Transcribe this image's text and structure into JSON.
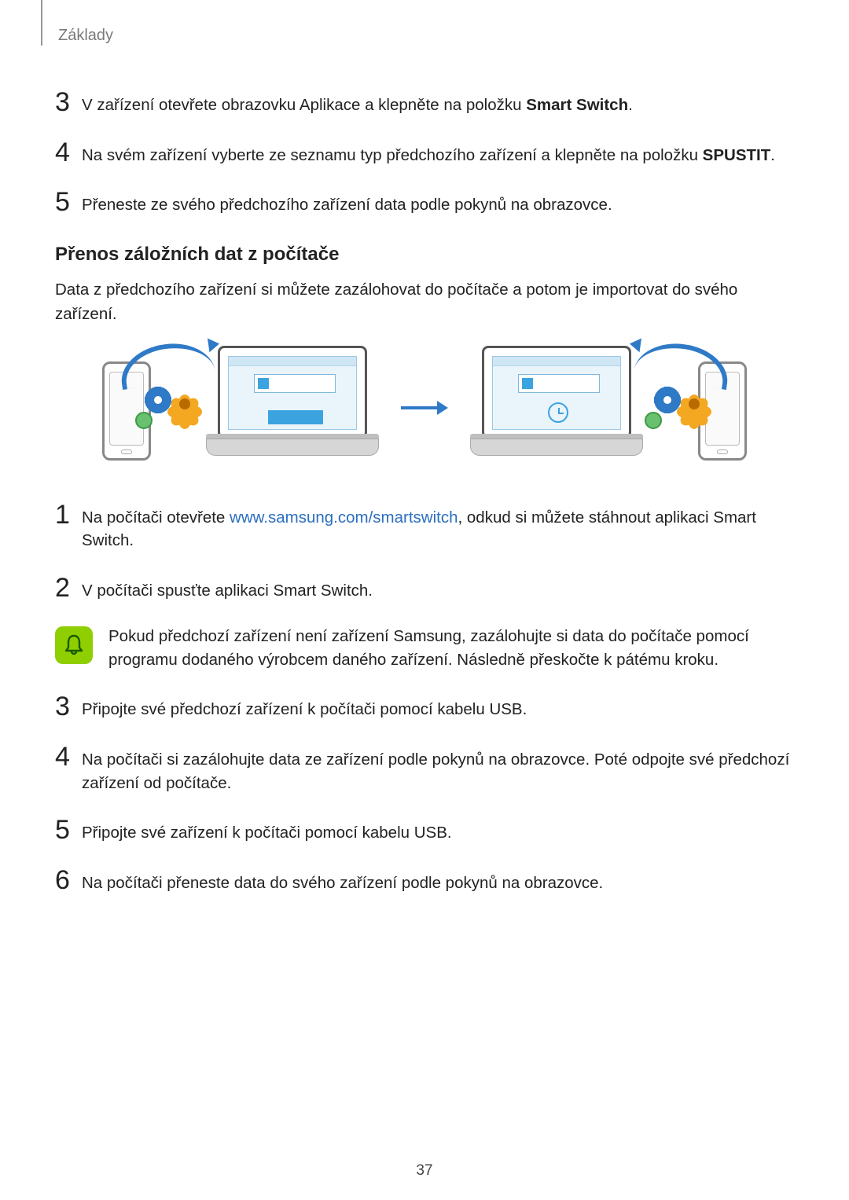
{
  "breadcrumb": "Základy",
  "section_a_steps": [
    {
      "n": "3",
      "pre": "V zařízení otevřete obrazovku Aplikace a klepněte na položku ",
      "bold": "Smart Switch",
      "post": "."
    },
    {
      "n": "4",
      "pre": "Na svém zařízení vyberte ze seznamu typ předchozího zařízení a klepněte na položku ",
      "bold": "SPUSTIT",
      "post": "."
    },
    {
      "n": "5",
      "pre": "Přeneste ze svého předchozího zařízení data podle pokynů na obrazovce.",
      "bold": "",
      "post": ""
    }
  ],
  "section_title": "Přenos záložních dat z počítače",
  "intro": "Data z předchozího zařízení si můžete zazálohovat do počítače a potom je importovat do svého zařízení.",
  "diagram": {
    "swoop_color": "#2f7ac7",
    "flower_color": "#f4a720",
    "gear_color": "#2f7ac7",
    "globe_color": "#69c06e",
    "arrow_color": "#2f7ac7",
    "app_accent": "#3ba3e0"
  },
  "section_b_urltext": "www.samsung.com/smartswitch",
  "section_b_steps": [
    {
      "n": "1",
      "pre": "Na počítači otevřete ",
      "link": "www.samsung.com/smartswitch",
      "post": ", odkud si můžete stáhnout aplikaci Smart Switch."
    },
    {
      "n": "2",
      "pre": "V počítači spusťte aplikaci Smart Switch.",
      "link": "",
      "post": ""
    }
  ],
  "note": "Pokud předchozí zařízení není zařízení Samsung, zazálohujte si data do počítače pomocí programu dodaného výrobcem daného zařízení. Následně přeskočte k pátému kroku.",
  "section_c_steps": [
    {
      "n": "3",
      "text": "Připojte své předchozí zařízení k počítači pomocí kabelu USB."
    },
    {
      "n": "4",
      "text": "Na počítači si zazálohujte data ze zařízení podle pokynů na obrazovce. Poté odpojte své předchozí zařízení od počítače."
    },
    {
      "n": "5",
      "text": "Připojte své zařízení k počítači pomocí kabelu USB."
    },
    {
      "n": "6",
      "text": "Na počítači přeneste data do svého zařízení podle pokynů na obrazovce."
    }
  ],
  "page_number": "37",
  "colors": {
    "link": "#2a6ebf",
    "note_icon_bg": "#8fce00",
    "text": "#222222"
  }
}
